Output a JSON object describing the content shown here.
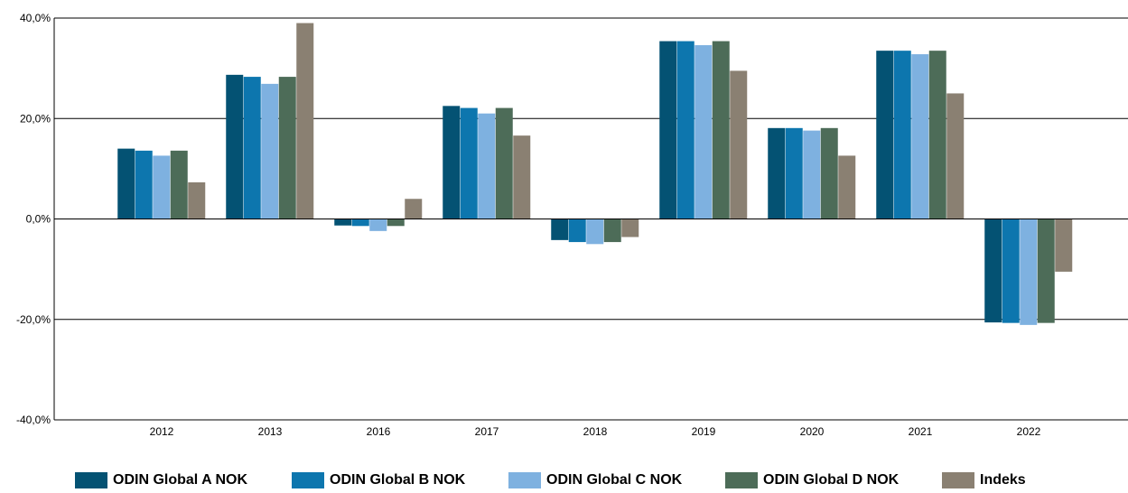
{
  "chart_data": {
    "type": "bar",
    "categories": [
      "2012",
      "2013",
      "2016",
      "2017",
      "2018",
      "2019",
      "2020",
      "2021",
      "2022"
    ],
    "series": [
      {
        "name": "ODIN Global A NOK",
        "color": "#045273",
        "values": [
          14.0,
          28.7,
          -1.3,
          22.5,
          -4.2,
          35.4,
          18.1,
          33.5,
          -20.6
        ]
      },
      {
        "name": "ODIN Global B NOK",
        "color": "#0d76ae",
        "values": [
          13.6,
          28.3,
          -1.4,
          22.1,
          -4.6,
          35.4,
          18.1,
          33.5,
          -20.7
        ]
      },
      {
        "name": "ODIN Global C NOK",
        "color": "#7eb1e0",
        "values": [
          12.6,
          26.9,
          -2.4,
          21.0,
          -5.0,
          34.6,
          17.6,
          32.8,
          -21.1
        ]
      },
      {
        "name": "ODIN Global D NOK",
        "color": "#4d6c58",
        "values": [
          13.6,
          28.3,
          -1.4,
          22.1,
          -4.6,
          35.4,
          18.1,
          33.5,
          -20.7
        ]
      },
      {
        "name": "Indeks",
        "color": "#8a8072",
        "values": [
          7.3,
          39.0,
          4.0,
          16.6,
          -3.6,
          29.5,
          12.6,
          25.0,
          -10.5
        ]
      }
    ],
    "y_ticks": [
      "40,0%",
      "20,0%",
      "0,0%",
      "-20,0%",
      "-40,0%"
    ],
    "ylim": [
      -40,
      40
    ],
    "grid": "horizontal",
    "legend_position": "bottom"
  }
}
